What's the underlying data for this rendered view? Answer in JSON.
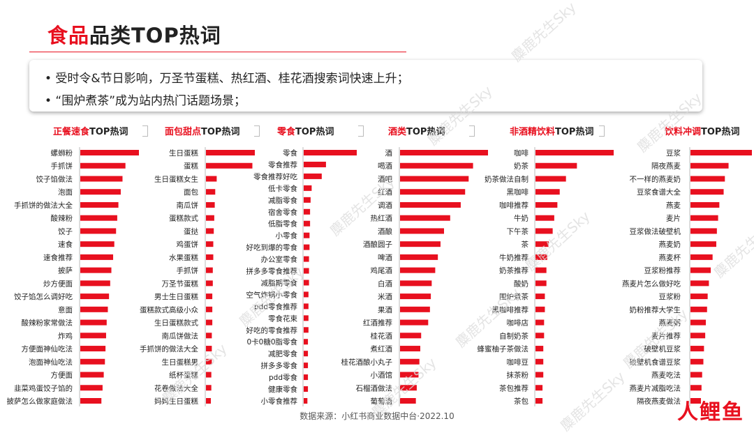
{
  "title": {
    "highlight": "食品",
    "rest": "品类TOP热词"
  },
  "summary": [
    "• 受时令&节日影响，万圣节蛋糕、热红酒、桂花酒搜索词快速上升；",
    "•  “围炉煮茶”成为站内热门话题场景；"
  ],
  "watermark_text": "麋鹿先生Sky",
  "source": "数据来源：小红书商业数据中台·2022.10",
  "logo": "人鲤鱼",
  "colors": {
    "accent": "#e8101f"
  },
  "chart_data": [
    {
      "type": "bar",
      "orientation": "horizontal",
      "title_highlight": "正餐速食",
      "title_rest": "TOP热词",
      "categories": [
        "螺蛳粉",
        "手抓饼",
        "饺子馅做法",
        "泡面",
        "手抓饼的做法大全",
        "酸辣粉",
        "饺子",
        "速食",
        "速食推荐",
        "披萨",
        "炒方便面",
        "饺子馅怎么调好吃",
        "意面",
        "酸辣粉家常做法",
        "炸鸡",
        "方便面神仙吃法",
        "泡面神仙吃法",
        "方便面",
        "韭菜鸡蛋饺子馅的",
        "披萨怎么做家庭做法"
      ],
      "values": [
        100,
        77,
        72,
        69,
        65,
        63,
        61,
        58,
        56,
        53,
        51,
        49,
        47,
        45,
        44,
        43,
        42,
        40,
        38,
        36
      ]
    },
    {
      "type": "bar",
      "orientation": "horizontal",
      "title_highlight": "面包甜点",
      "title_rest": "TOP热词",
      "categories": [
        "生日蛋糕",
        "蛋糕",
        "生日蛋糕女生",
        "面包",
        "南瓜饼",
        "蛋糕款式",
        "蛋挞",
        "鸡蛋饼",
        "水果蛋糕",
        "手抓饼",
        "万圣节蛋糕",
        "男士生日蛋糕",
        "蛋糕款式高级小众",
        "生日蛋糕款式",
        "南瓜饼做法",
        "手抓饼的做法大全",
        "生日蛋糕男",
        "纸杯蛋糕",
        "花卷做法大全",
        "妈妈生日蛋糕"
      ],
      "values": [
        100,
        95,
        22,
        19,
        18,
        17,
        16,
        15,
        15,
        14,
        14,
        13,
        13,
        13,
        12,
        12,
        12,
        11,
        11,
        10
      ]
    },
    {
      "type": "bar",
      "orientation": "horizontal",
      "title_highlight": "零食",
      "title_rest": "TOP热词",
      "categories": [
        "零食",
        "零食推荐",
        "零食推荐好吃",
        "低卡零食",
        "减脂零食",
        "宿舍零食",
        "低脂零食",
        "小零食",
        "好吃到爆的零食",
        "办公室零食",
        "拼多多零食推荐",
        "减脂期零食",
        "空气炸锅小零食",
        "pdd零食推荐",
        "零食花束",
        "好吃的零食推荐",
        "0卡0糖0脂零食",
        "减肥零食",
        "拼多多零食",
        "pdd零食",
        "健康零食",
        "小零食推荐"
      ],
      "values": [
        100,
        42,
        34,
        15,
        13,
        12,
        12,
        11,
        11,
        10,
        10,
        10,
        9,
        9,
        9,
        9,
        8,
        8,
        8,
        8,
        8,
        7
      ]
    },
    {
      "type": "bar",
      "orientation": "horizontal",
      "title_highlight": "酒类",
      "title_rest": "TOP热词",
      "categories": [
        "酒",
        "喝酒",
        "酒吧",
        "红酒",
        "调酒",
        "热红酒",
        "酒酿",
        "酒酿圆子",
        "啤酒",
        "鸡尾酒",
        "白酒",
        "米酒",
        "果酒",
        "红酒推荐",
        "桂花酒",
        "煮红酒",
        "桂花酒酿小丸子",
        "小酒馆",
        "石榴酒做法",
        "葡萄酒"
      ],
      "values": [
        100,
        83,
        78,
        74,
        69,
        57,
        50,
        46,
        43,
        40,
        36,
        35,
        34,
        32,
        24,
        23,
        22,
        21,
        19,
        18
      ]
    },
    {
      "type": "bar",
      "orientation": "horizontal",
      "title_highlight": "非酒精饮料",
      "title_rest": "TOP热词",
      "categories": [
        "咖啡",
        "奶茶",
        "奶茶做法自制",
        "黑咖啡",
        "咖啡推荐",
        "牛奶",
        "下午茶",
        "茶",
        "牛奶推荐",
        "奶茶推荐",
        "酸奶",
        "围炉煮茶",
        "黑咖啡推荐",
        "咖啡店",
        "自制奶茶",
        "蜂蜜柚子茶做法",
        "咖啡豆",
        "抹茶粉",
        "茶包推荐",
        "茶包"
      ],
      "values": [
        100,
        53,
        39,
        31,
        28,
        24,
        22,
        17,
        15,
        14,
        14,
        12,
        12,
        11,
        11,
        10,
        10,
        10,
        9,
        9
      ]
    },
    {
      "type": "bar",
      "orientation": "horizontal",
      "title_highlight": "饮料冲调",
      "title_rest": "TOP热词",
      "categories": [
        "豆浆",
        "隔夜燕麦",
        "不一样的燕麦奶",
        "豆浆食谱大全",
        "燕麦",
        "麦片",
        "豆浆做法破壁机",
        "燕麦奶",
        "燕麦杯",
        "豆浆粉推荐",
        "燕麦片怎么做好吃",
        "豆浆粉",
        "奶粉推荐大学生",
        "燕麦粥",
        "麦片推荐",
        "破壁机豆浆",
        "破壁机食谱豆浆",
        "燕麦吃法",
        "燕麦片减脂吃法",
        "隔夜燕麦做法"
      ],
      "values": [
        100,
        62,
        56,
        54,
        47,
        45,
        43,
        42,
        36,
        33,
        30,
        28,
        27,
        25,
        24,
        22,
        21,
        19,
        18,
        17
      ]
    }
  ]
}
